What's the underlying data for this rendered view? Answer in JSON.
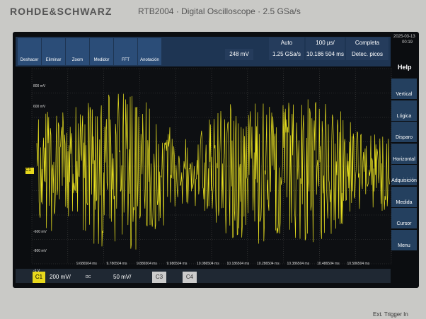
{
  "bezel": {
    "brand": "ROHDE&SCHWARZ",
    "model": "RTB2004 · Digital Oscilloscope · 2.5 GSa/s",
    "ext_trigger": "Ext. Trigger In"
  },
  "toolbar": {
    "buttons": [
      "Deshacer",
      "Eliminar",
      "Zoom",
      "Medidor",
      "FFT",
      "Anotación"
    ]
  },
  "trigger": {
    "level": "248 mV",
    "mode": "Auto",
    "timebase": "100 µs/",
    "record": "Completa",
    "sample_rate": "1.25 GSa/s",
    "position": "10.186 504 ms",
    "acquire": "Detec. picos",
    "date": "2025-03-13",
    "time": "00:19"
  },
  "side_menu": {
    "help": "Help",
    "items": [
      "Vertical",
      "Lógica",
      "Disparo",
      "Horizontal",
      "Adquisición",
      "Medida",
      "Cursor",
      "Menu"
    ]
  },
  "axes": {
    "y_labels": [
      "800 mV",
      "600 mV",
      "-600 mV",
      "-800 mV",
      "-1 V"
    ],
    "x_labels": [
      "9.686504 ms",
      "9.786504 ms",
      "9.886504 ms",
      "9.986504 ms",
      "10.086504 ms",
      "10.186504 ms",
      "10.286504 ms",
      "10.386504 ms",
      "10.486504 ms",
      "10.586504 ms"
    ],
    "channel_marker": "C1"
  },
  "channels": {
    "c1": "C1",
    "c1_scale": "200 mV/",
    "c2_coupling": "DC",
    "c2_scale": "50 mV/",
    "c3": "C3",
    "c4": "C4"
  }
}
